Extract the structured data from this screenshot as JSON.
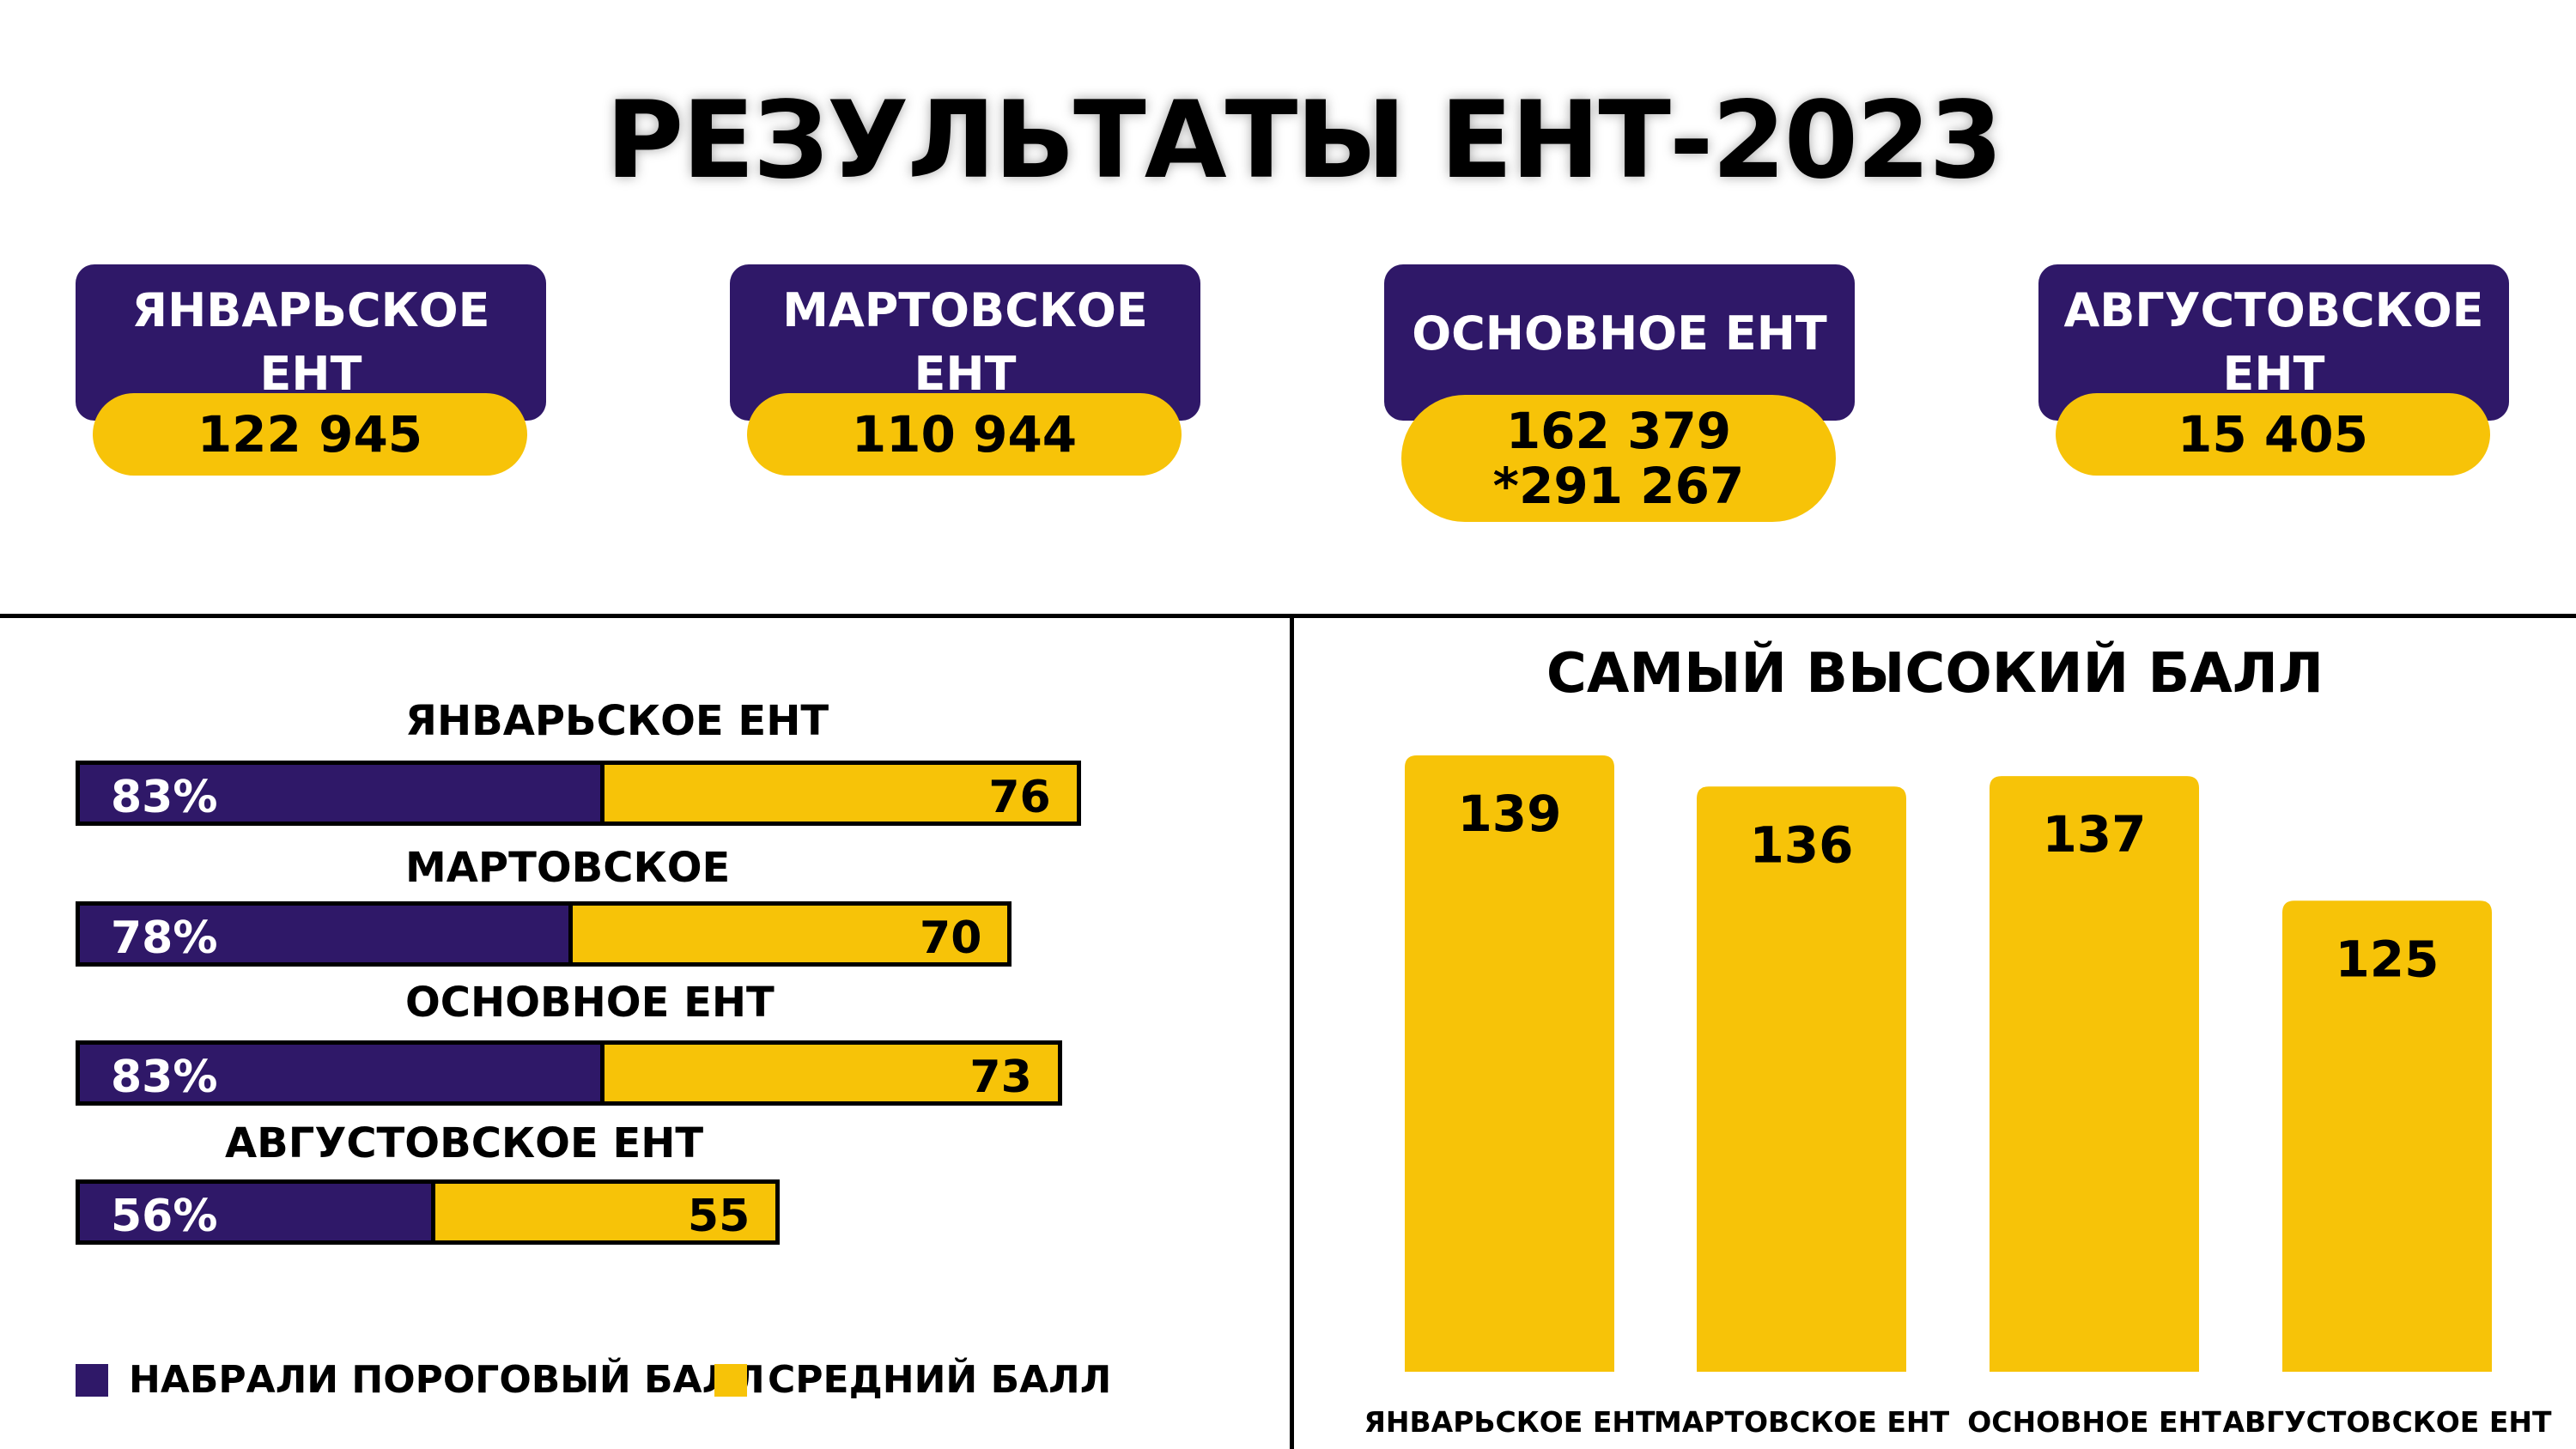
{
  "title": "РЕЗУЛЬТАТЫ ЕНТ-2023",
  "colors": {
    "purple": "#2f1868",
    "yellow": "#f7c308"
  },
  "cards": [
    {
      "label_lines": [
        "ЯНВАРЬСКОЕ",
        "ЕНТ"
      ],
      "value_lines": [
        "122 945"
      ]
    },
    {
      "label_lines": [
        "МАРТОВСКОЕ",
        "ЕНТ"
      ],
      "value_lines": [
        "110 944"
      ]
    },
    {
      "label_lines": [
        "ОСНОВНОЕ ЕНТ"
      ],
      "value_lines": [
        "162 379",
        "*291 267"
      ]
    },
    {
      "label_lines": [
        "АВГУСТОВСКОЕ",
        "ЕНТ"
      ],
      "value_lines": [
        "15 405"
      ]
    }
  ],
  "stacked": {
    "groups": [
      {
        "label": "ЯНВАРЬСКОЕ ЕНТ",
        "threshold_pct": "83%",
        "avg": "76"
      },
      {
        "label": "МАРТОВСКОЕ ЕНТ",
        "threshold_pct": "78%",
        "avg": "70"
      },
      {
        "label": "ОСНОВНОЕ ЕНТ",
        "threshold_pct": "83%",
        "avg": "73"
      },
      {
        "label": "АВГУСТОВСКОЕ ЕНТ",
        "threshold_pct": "56%",
        "avg": "55"
      }
    ],
    "legend": [
      "НАБРАЛИ ПОРОГОВЫЙ БАЛЛ",
      "СРЕДНИЙ БАЛЛ"
    ]
  },
  "chart_data": [
    {
      "type": "bar",
      "categories": [
        "ЯНВАРЬСКОЕ ЕНТ",
        "МАРТОВСКОЕ ЕНТ",
        "ОСНОВНОЕ ЕНТ",
        "АВГУСТОВСКОЕ ЕНТ"
      ],
      "series": [
        {
          "name": "НАБРАЛИ ПОРОГОВЫЙ БАЛЛ",
          "values": [
            83,
            78,
            83,
            56
          ]
        },
        {
          "name": "СРЕДНИЙ БАЛЛ",
          "values": [
            76,
            70,
            73,
            55
          ]
        }
      ],
      "stacked": true,
      "orientation": "horizontal"
    },
    {
      "type": "bar",
      "title": "САМЫЙ ВЫСОКИЙ БАЛЛ",
      "categories": [
        "ЯНВАРЬСКОЕ ЕНТ",
        "МАРТОВСКОЕ ЕНТ",
        "ОСНОВНОЕ ЕНТ",
        "АВГУСТОВСКОЕ ЕНТ"
      ],
      "values": [
        139,
        136,
        137,
        125
      ],
      "data_labels": [
        "139",
        "136",
        "137",
        "125"
      ]
    }
  ]
}
